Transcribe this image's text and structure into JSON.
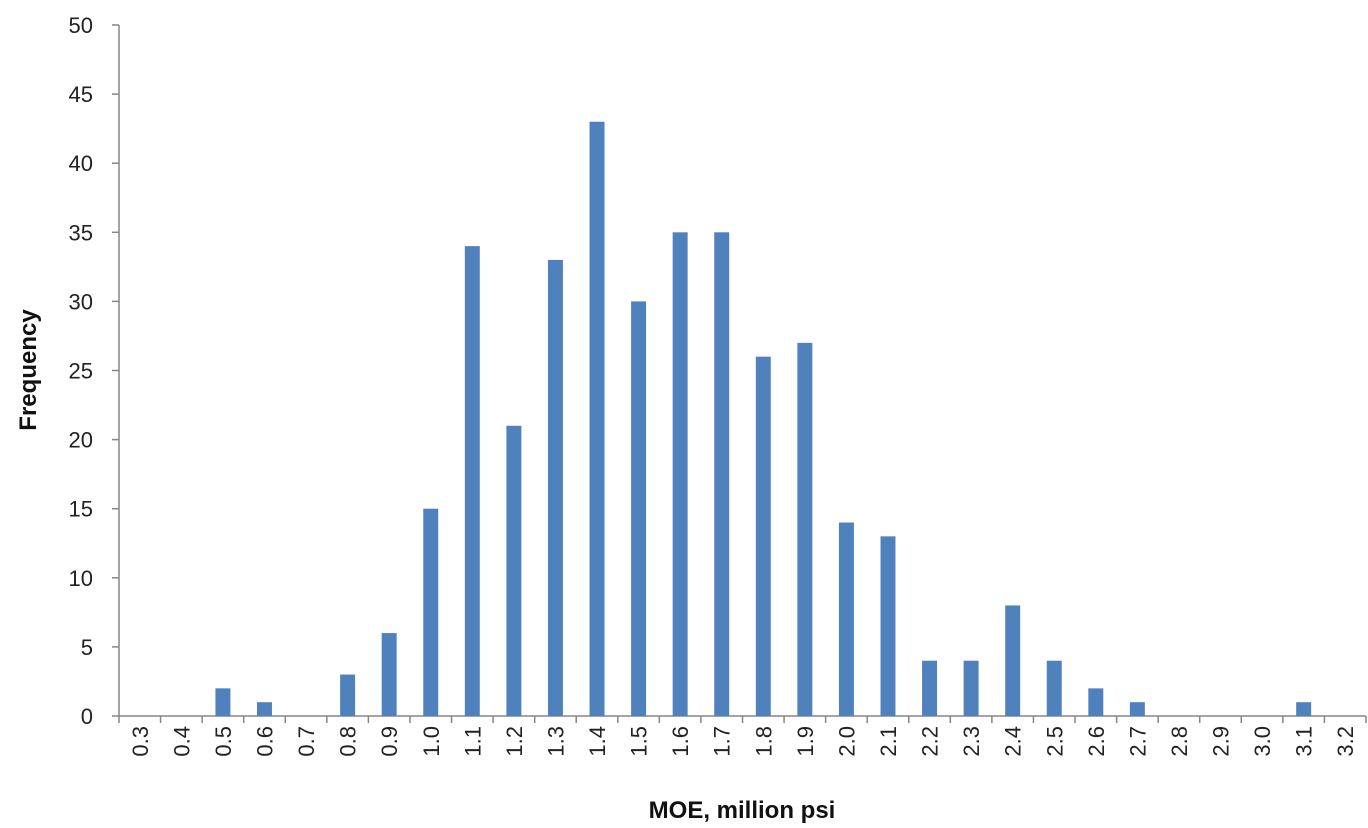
{
  "chart_data": {
    "type": "bar",
    "title": "",
    "xlabel": "MOE, million psi",
    "ylabel": "Frequency",
    "categories": [
      "0.3",
      "0.4",
      "0.5",
      "0.6",
      "0.7",
      "0.8",
      "0.9",
      "1.0",
      "1.1",
      "1.2",
      "1.3",
      "1.4",
      "1.5",
      "1.6",
      "1.7",
      "1.8",
      "1.9",
      "2.0",
      "2.1",
      "2.2",
      "2.3",
      "2.4",
      "2.5",
      "2.6",
      "2.7",
      "2.8",
      "2.9",
      "3.0",
      "3.1",
      "3.2"
    ],
    "values": [
      0,
      0,
      2,
      1,
      0,
      3,
      6,
      15,
      34,
      21,
      33,
      43,
      30,
      35,
      35,
      26,
      27,
      14,
      13,
      4,
      4,
      8,
      4,
      2,
      1,
      0,
      0,
      0,
      1,
      0
    ],
    "ylim": [
      0,
      50
    ],
    "yticks": [
      0,
      5,
      10,
      15,
      20,
      25,
      30,
      35,
      40,
      45,
      50
    ],
    "grid": false,
    "legend": "none",
    "bar_color": "#4f81bd",
    "axis_color": "#868686"
  }
}
